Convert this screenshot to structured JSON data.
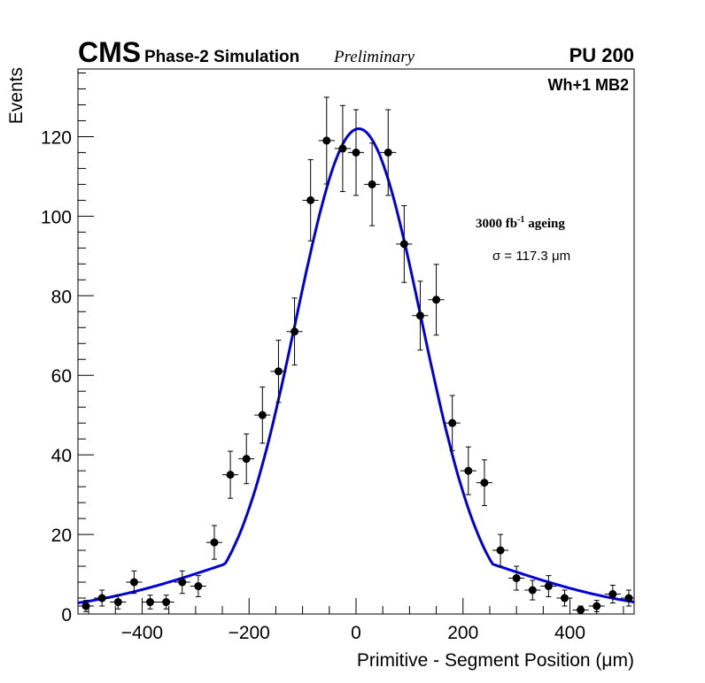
{
  "header": {
    "experiment": "CMS",
    "subtitle": "Phase-2 Simulation",
    "status": "Preliminary",
    "pileup": "PU 200"
  },
  "chart_data": {
    "type": "scatter",
    "title": "",
    "chamber_label": "Wh+1 MB2",
    "ageing_label": {
      "prefix": "3000 fb",
      "superscript": "-1",
      "suffix": " ageing"
    },
    "fit_label": "σ = 117.3 μm",
    "xlabel": "Primitive - Segment Position (μm)",
    "ylabel": "Events",
    "xlim": [
      -520,
      520
    ],
    "ylim": [
      0,
      137
    ],
    "xticks": [
      -400,
      -200,
      0,
      200,
      400
    ],
    "yticks": [
      0,
      20,
      40,
      60,
      80,
      100,
      120
    ],
    "bin_width": 30,
    "series": [
      {
        "name": "data",
        "marker": "filled-circle",
        "color": "#000000",
        "x": [
          -505,
          -475,
          -445,
          -415,
          -385,
          -355,
          -325,
          -295,
          -265,
          -235,
          -205,
          -175,
          -145,
          -115,
          -85,
          -55,
          -25,
          0,
          30,
          60,
          90,
          120,
          150,
          180,
          210,
          240,
          270,
          300,
          330,
          360,
          390,
          420,
          450,
          480,
          510
        ],
        "y": [
          2,
          4,
          3,
          8,
          3,
          3,
          8,
          7,
          18,
          35,
          39,
          50,
          61,
          71,
          104,
          119,
          117,
          116,
          108,
          116,
          93,
          75,
          79,
          48,
          36,
          33,
          16,
          9,
          6,
          7,
          4,
          1,
          2,
          5,
          4
        ]
      },
      {
        "name": "gaussian fit",
        "type": "line",
        "color": "#0000dd",
        "fit": {
          "amplitude": 122,
          "mean": 5,
          "sigma": 117.3,
          "sigma_tails": 140
        }
      }
    ]
  }
}
